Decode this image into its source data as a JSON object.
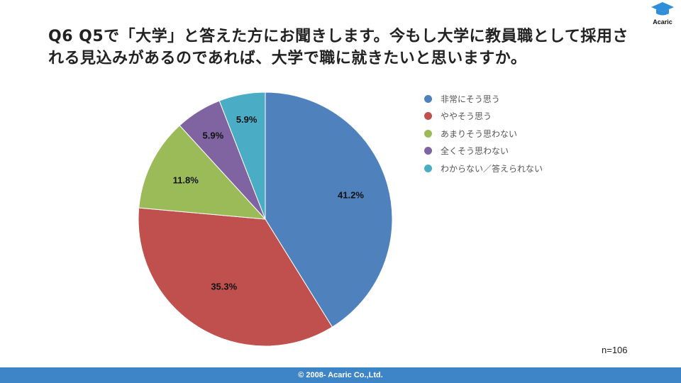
{
  "header": {
    "title": "Q6 Q5で「大学」と答えた方にお聞きします。今もし大学に教員職として採用される見込みがあるのであれば、大学で職に就きたいと思いますか。"
  },
  "logo": {
    "text": "Acaric"
  },
  "chart_data": {
    "type": "pie",
    "title": "Q6 Q5で「大学」と答えた方にお聞きします。今もし大学に教員職として採用される見込みがあるのであれば、大学で職に就きたいと思いますか。",
    "categories": [
      "非常にそう思う",
      "ややそう思う",
      "あまりそう思わない",
      "全くそう思わない",
      "わからない／答えられない"
    ],
    "values": [
      41.2,
      35.3,
      11.8,
      5.9,
      5.9
    ],
    "labels": [
      "41.2%",
      "35.3%",
      "11.8%",
      "5.9%",
      "5.9%"
    ],
    "colors": [
      "#4f81bd",
      "#c0504d",
      "#9bbb59",
      "#8064a2",
      "#4bacc6"
    ],
    "start": "top",
    "direction": "clockwise",
    "legend_position": "right",
    "note": "n=106"
  },
  "footer": {
    "text": "© 2008- Acaric Co.,Ltd."
  }
}
